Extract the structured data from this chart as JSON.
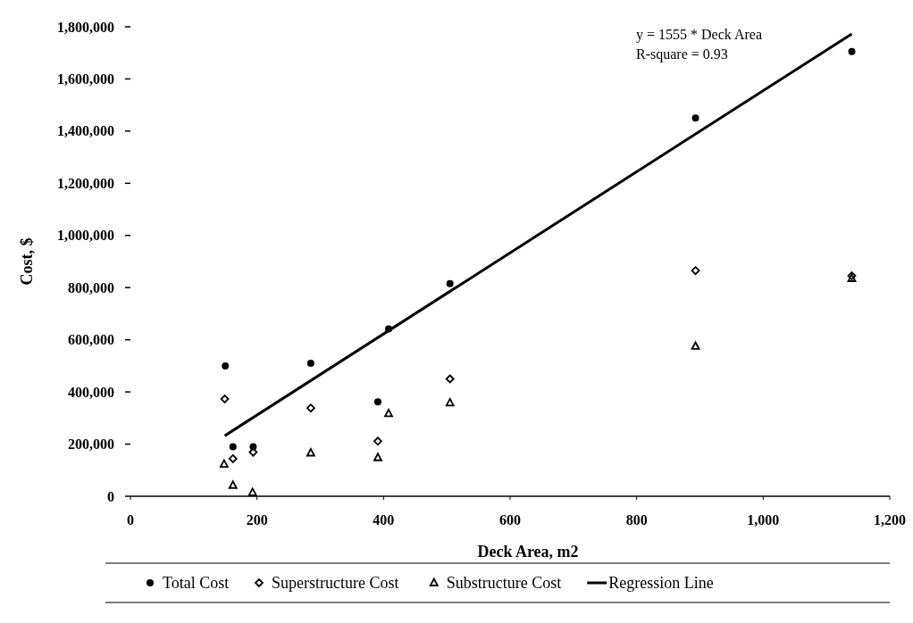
{
  "chart_data": {
    "type": "scatter",
    "xlabel": "Deck Area, m2",
    "ylabel": "Cost, $",
    "annotations": [
      "y = 1555 * Deck Area",
      "R-square = 0.93"
    ],
    "series": [
      {
        "name": "Total Cost",
        "color": "#000000",
        "marker": "circle",
        "x": [
          150,
          162,
          194,
          285,
          391,
          408,
          505,
          893,
          1140
        ],
        "values": [
          500000,
          190000,
          190000,
          510000,
          362000,
          642000,
          815000,
          1450000,
          1705000
        ]
      },
      {
        "name": "Superstructure Cost",
        "color": "#000000",
        "marker": "diamond",
        "x": [
          149,
          162,
          194,
          285,
          391,
          505,
          893,
          1140
        ],
        "values": [
          373000,
          144000,
          169000,
          338000,
          211000,
          450000,
          865000,
          845000
        ]
      },
      {
        "name": "Substructure Cost",
        "color": "#000000",
        "marker": "triangle",
        "x": [
          148,
          162,
          193,
          285,
          391,
          408,
          505,
          893,
          1140
        ],
        "values": [
          123000,
          42000,
          14000,
          166000,
          148000,
          317000,
          358000,
          575000,
          835000
        ]
      },
      {
        "name": "Regression Line",
        "type": "line",
        "color": "#000000",
        "marker": "none",
        "line_style": "solid",
        "x": [
          149,
          1140
        ],
        "values": [
          232000,
          1773000
        ]
      }
    ],
    "xlim": [
      0,
      1200
    ],
    "ylim": [
      0,
      1800000
    ],
    "xticks": [
      0,
      200,
      400,
      600,
      800,
      {
        "value": 1000,
        "label": "1,000"
      },
      {
        "value": 1200,
        "label": "1,200"
      }
    ],
    "yticks": [
      0,
      {
        "value": 200000,
        "label": "200,000"
      },
      {
        "value": 400000,
        "label": "400,000"
      },
      {
        "value": 600000,
        "label": "600,000"
      },
      {
        "value": 800000,
        "label": "800,000"
      },
      {
        "value": 1000000,
        "label": "1,000,000"
      },
      {
        "value": 1200000,
        "label": "1,200,000"
      },
      {
        "value": 1400000,
        "label": "1,400,000"
      },
      {
        "value": 1600000,
        "label": "1,600,000"
      },
      {
        "value": 1800000,
        "label": "1,800,000"
      }
    ],
    "grid": false,
    "legend": "bottom"
  }
}
